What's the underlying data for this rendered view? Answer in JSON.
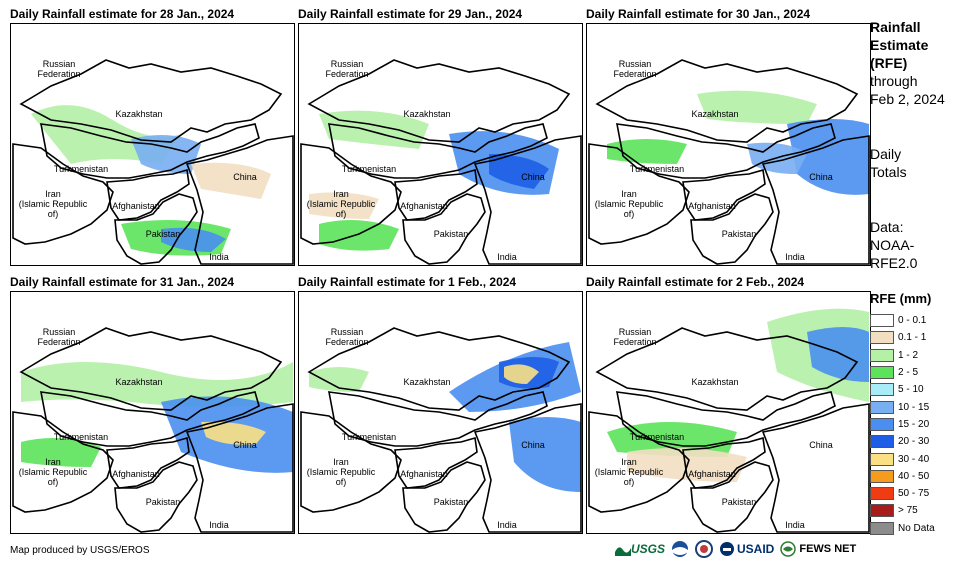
{
  "panels": [
    {
      "title": "Daily Rainfall estimate for 28 Jan., 2024"
    },
    {
      "title": "Daily Rainfall estimate for 29 Jan., 2024"
    },
    {
      "title": "Daily Rainfall estimate for 30 Jan., 2024"
    },
    {
      "title": "Daily Rainfall estimate for 31 Jan., 2024"
    },
    {
      "title": "Daily Rainfall estimate for 1 Feb., 2024"
    },
    {
      "title": "Daily Rainfall estimate for 2 Feb., 2024"
    }
  ],
  "countries": {
    "russia": "Russian\nFederation",
    "kazakhstan": "Kazakhstan",
    "turkmenistan": "Turkmenistan",
    "iran": "Iran\n(Islamic Republic of)",
    "afghanistan": "Afghanistan",
    "pakistan": "Pakistan",
    "india": "India",
    "china": "China"
  },
  "side": {
    "line1": "Rainfall",
    "line2": "Estimate",
    "line3": "(RFE)",
    "line4": "through",
    "line5": "Feb 2, 2024",
    "daily1": "Daily",
    "daily2": "Totals",
    "data1": "Data:",
    "data2": "NOAA-",
    "data3": "RFE2.0"
  },
  "legend": {
    "title": "RFE (mm)",
    "items": [
      {
        "label": "0 - 0.1",
        "color": "#ffffff"
      },
      {
        "label": "0.1 - 1",
        "color": "#f2dfc2"
      },
      {
        "label": "1 - 2",
        "color": "#b4f0a6"
      },
      {
        "label": "2 - 5",
        "color": "#5ce35a"
      },
      {
        "label": "5 - 10",
        "color": "#a8ecf7"
      },
      {
        "label": "10 - 15",
        "color": "#78aef2"
      },
      {
        "label": "15 - 20",
        "color": "#4a8ff0"
      },
      {
        "label": "20 - 30",
        "color": "#1e5ee6"
      },
      {
        "label": "30 - 40",
        "color": "#fbe083"
      },
      {
        "label": "40 - 50",
        "color": "#f59c1c"
      },
      {
        "label": "50 - 75",
        "color": "#f03c12"
      },
      {
        "label": "> 75",
        "color": "#a81c1c"
      },
      {
        "label": "No Data",
        "color": "#8c8c8c"
      }
    ]
  },
  "footer": "Map produced by USGS/EROS",
  "logos": {
    "usgs": "USGS",
    "usaid": "USAID",
    "fews": "FEWS NET"
  }
}
